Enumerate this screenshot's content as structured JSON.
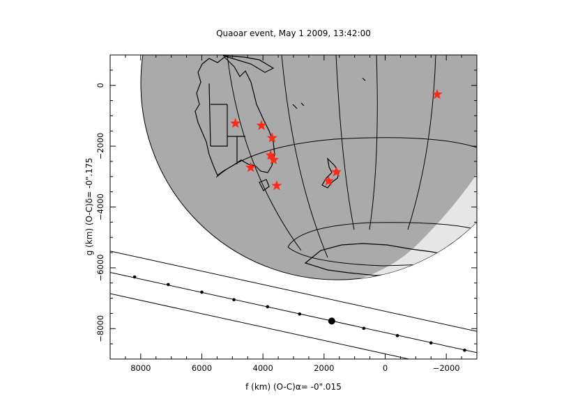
{
  "title": "Quaoar event, May 1 2009, 13:42:00",
  "xlabel": "f (km) (O-C)α= -0\".015",
  "ylabel": "g (km) (O-C)δ= -0\".175",
  "xaxis": {
    "range": [
      9000,
      -3000
    ],
    "ticks": [
      8000,
      6000,
      4000,
      2000,
      0,
      -2000
    ],
    "tick_labels": [
      "8000",
      "6000",
      "4000",
      "2000",
      "0",
      "−2000"
    ]
  },
  "yaxis": {
    "range": [
      -9000,
      1000
    ],
    "ticks": [
      0,
      -2000,
      -4000,
      -6000,
      -8000
    ],
    "tick_labels": [
      "0",
      "−2000",
      "−4000",
      "−6000",
      "−8000"
    ]
  },
  "colors": {
    "earth_night": "#aaaaaa",
    "earth_day": "#e6e6e6",
    "stations": "#ff2a1a",
    "lines": "#000000"
  },
  "chart_data": {
    "type": "scatter",
    "stations": [
      {
        "f": 4900,
        "g": -1250
      },
      {
        "f": 4050,
        "g": -1320
      },
      {
        "f": 3700,
        "g": -1730
      },
      {
        "f": 3750,
        "g": -2300
      },
      {
        "f": 3650,
        "g": -2450
      },
      {
        "f": 4400,
        "g": -2700
      },
      {
        "f": 3550,
        "g": -3300
      },
      {
        "f": 1600,
        "g": -2850
      },
      {
        "f": 1850,
        "g": -3150
      },
      {
        "f": -1700,
        "g": -300
      }
    ],
    "shadow_path": {
      "center": [
        [
          9000,
          -6150
        ],
        [
          -3000,
          -8790
        ]
      ],
      "north_limit": [
        [
          9000,
          -5450
        ],
        [
          -3000,
          -8090
        ]
      ],
      "south_limit": [
        [
          9000,
          -6850
        ],
        [
          -3000,
          -9490
        ]
      ]
    },
    "time_marks": [
      {
        "f": 8200,
        "g": -6300
      },
      {
        "f": 7100,
        "g": -6550
      },
      {
        "f": 6000,
        "g": -6800
      },
      {
        "f": 4950,
        "g": -7050
      },
      {
        "f": 3850,
        "g": -7280
      },
      {
        "f": 2800,
        "g": -7520
      },
      {
        "f": 700,
        "g": -7990
      },
      {
        "f": -400,
        "g": -8230
      },
      {
        "f": -1500,
        "g": -8470
      },
      {
        "f": -2600,
        "g": -8710
      }
    ],
    "closest_approach": {
      "f": 1750,
      "g": -7750
    }
  }
}
